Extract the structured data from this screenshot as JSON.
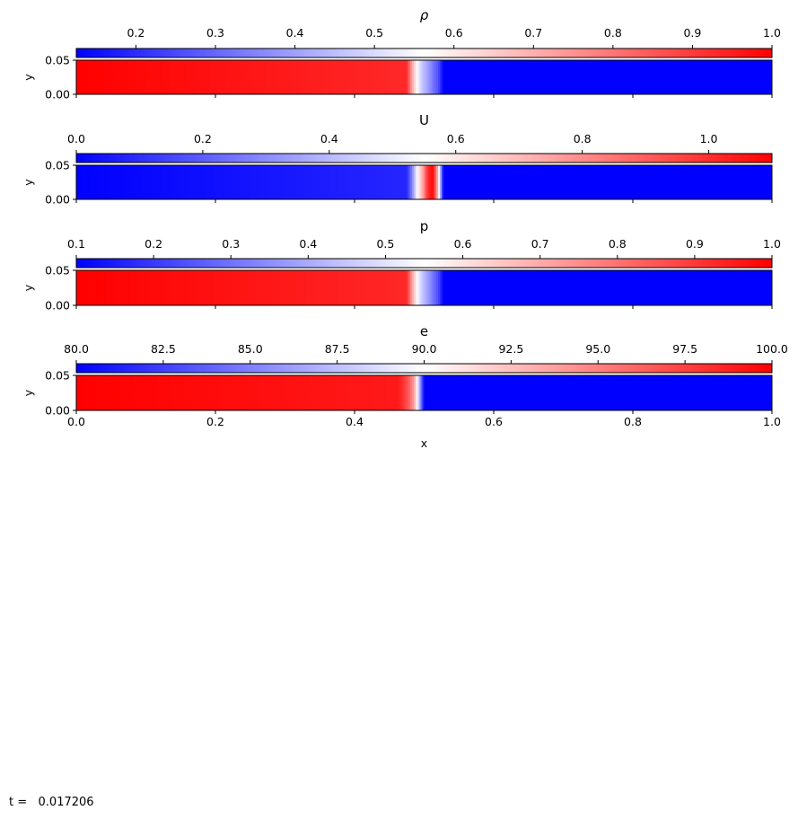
{
  "figure": {
    "time_label": "t =   0.017206"
  },
  "colors": {
    "low": "#0000ff",
    "mid": "#ffffff",
    "high": "#ff0000"
  },
  "chart_data": [
    {
      "type": "heatmap",
      "title": "ρ",
      "variable": "rho",
      "ylabel": "y",
      "xlabel": "",
      "xlim": [
        0.0,
        1.0
      ],
      "ylim": [
        0.0,
        0.05
      ],
      "yticks": [
        "0.00",
        "0.05"
      ],
      "colorbar": {
        "label": "ρ",
        "range": [
          0.125,
          1.0
        ],
        "ticks": [
          0.2,
          0.3,
          0.4,
          0.5,
          0.6,
          0.7,
          0.8,
          0.9,
          1.0
        ],
        "tick_labels": [
          "0.2",
          "0.3",
          "0.4",
          "0.5",
          "0.6",
          "0.7",
          "0.8",
          "0.9",
          "1.0"
        ],
        "colormap": "bwr"
      },
      "profile_x": [
        0.0,
        0.475,
        0.4825,
        0.49,
        0.4975,
        0.505,
        0.5125,
        0.52,
        0.5275,
        1.0
      ],
      "profile_v": [
        1.0,
        0.93,
        0.72,
        0.56,
        0.46,
        0.4,
        0.33,
        0.27,
        0.125,
        0.125
      ]
    },
    {
      "type": "heatmap",
      "title": "U",
      "variable": "U",
      "ylabel": "y",
      "xlabel": "",
      "xlim": [
        0.0,
        1.0
      ],
      "ylim": [
        0.0,
        0.05
      ],
      "yticks": [
        "0.00",
        "0.05"
      ],
      "colorbar": {
        "label": "U",
        "range": [
          0.0,
          1.1
        ],
        "ticks": [
          0.0,
          0.2,
          0.4,
          0.6,
          0.8,
          1.0
        ],
        "tick_labels": [
          "0.0",
          "0.2",
          "0.4",
          "0.6",
          "0.8",
          "1.0"
        ],
        "colormap": "bwr"
      },
      "profile_x": [
        0.0,
        0.475,
        0.4825,
        0.49,
        0.4975,
        0.505,
        0.5125,
        0.52,
        0.5275,
        1.0
      ],
      "profile_v": [
        0.0,
        0.08,
        0.28,
        0.55,
        0.72,
        1.0,
        1.1,
        0.7,
        0.0,
        0.0
      ]
    },
    {
      "type": "heatmap",
      "title": "p",
      "variable": "p",
      "ylabel": "y",
      "xlabel": "",
      "xlim": [
        0.0,
        1.0
      ],
      "ylim": [
        0.0,
        0.05
      ],
      "yticks": [
        "0.00",
        "0.05"
      ],
      "colorbar": {
        "label": "p",
        "range": [
          0.1,
          1.0
        ],
        "ticks": [
          0.1,
          0.2,
          0.3,
          0.4,
          0.5,
          0.6,
          0.7,
          0.8,
          0.9,
          1.0
        ],
        "tick_labels": [
          "0.1",
          "0.2",
          "0.3",
          "0.4",
          "0.5",
          "0.6",
          "0.7",
          "0.8",
          "0.9",
          "1.0"
        ],
        "colormap": "bwr"
      },
      "profile_x": [
        0.0,
        0.475,
        0.4825,
        0.49,
        0.4975,
        0.505,
        0.5125,
        0.52,
        0.5275,
        1.0
      ],
      "profile_v": [
        1.0,
        0.93,
        0.72,
        0.55,
        0.45,
        0.38,
        0.31,
        0.24,
        0.1,
        0.1
      ]
    },
    {
      "type": "heatmap",
      "title": "e",
      "variable": "e",
      "ylabel": "y",
      "xlabel": "x",
      "xlim": [
        0.0,
        1.0
      ],
      "ylim": [
        0.0,
        0.05
      ],
      "yticks": [
        "0.00",
        "0.05"
      ],
      "xticks": [
        "0.0",
        "0.2",
        "0.4",
        "0.6",
        "0.8",
        "1.0"
      ],
      "colorbar": {
        "label": "e",
        "range": [
          80.0,
          100.0
        ],
        "ticks": [
          80.0,
          82.5,
          85.0,
          87.5,
          90.0,
          92.5,
          95.0,
          97.5,
          100.0
        ],
        "tick_labels": [
          "80.0",
          "82.5",
          "85.0",
          "87.5",
          "90.0",
          "92.5",
          "95.0",
          "97.5",
          "100.0"
        ],
        "colormap": "bwr"
      },
      "profile_x": [
        0.0,
        0.4625,
        0.47,
        0.4775,
        0.485,
        0.4925,
        0.5,
        1.0
      ],
      "profile_v": [
        100.0,
        99.0,
        98.0,
        96.5,
        94.0,
        88.0,
        80.0,
        80.0
      ]
    }
  ]
}
